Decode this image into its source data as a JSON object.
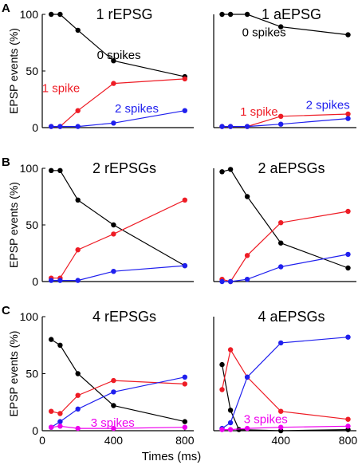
{
  "figure": {
    "ylabel": "EPSP events (%)",
    "xlabel": "Times (ms)"
  },
  "colors": {
    "0 spikes": "#000000",
    "1 spike": "#ee1c25",
    "2 spikes": "#1f1fee",
    "3 spikes": "#ee00ee",
    "axis": "#000000"
  },
  "chart_data": [
    {
      "type": "line",
      "panel": "A",
      "title": "1 rEPSG",
      "x": [
        50,
        100,
        200,
        400,
        800
      ],
      "xlim": [
        0,
        850
      ],
      "ylim": [
        0,
        100
      ],
      "xticks": [],
      "yticks": [
        0,
        50,
        100
      ],
      "xlabel": "",
      "ylabel": "EPSP events (%)",
      "series": [
        {
          "key": "0 spikes",
          "name": "0 spikes",
          "values": [
            100,
            100,
            86,
            59,
            45
          ]
        },
        {
          "key": "1 spike",
          "name": "1 spike",
          "values": [
            1,
            1,
            15,
            39,
            43
          ]
        },
        {
          "key": "2 spikes",
          "name": "2 spikes",
          "values": [
            1,
            1,
            1,
            4,
            15
          ]
        }
      ],
      "annotations": [
        {
          "key": "0 spikes",
          "text": "0 spikes",
          "x": 430,
          "y": 64
        },
        {
          "key": "1 spike",
          "text": "1 spike",
          "x": 105,
          "y": 35
        },
        {
          "key": "2 spikes",
          "text": "2 spikes",
          "x": 530,
          "y": 17
        }
      ]
    },
    {
      "type": "line",
      "panel": "",
      "title": "1 aEPSG",
      "x": [
        50,
        100,
        200,
        400,
        800
      ],
      "xlim": [
        0,
        850
      ],
      "ylim": [
        0,
        100
      ],
      "xticks": [],
      "yticks": [],
      "xlabel": "",
      "ylabel": "",
      "series": [
        {
          "key": "0 spikes",
          "name": "0 spikes",
          "values": [
            100,
            100,
            100,
            89,
            82
          ]
        },
        {
          "key": "1 spike",
          "name": "1 spike",
          "values": [
            1,
            1,
            1,
            10,
            12
          ]
        },
        {
          "key": "2 spikes",
          "name": "2 spikes",
          "values": [
            1,
            1,
            1,
            3,
            8
          ]
        }
      ],
      "annotations": [
        {
          "key": "0 spikes",
          "text": "0 spikes",
          "x": 300,
          "y": 84
        },
        {
          "key": "1 spike",
          "text": "1 spike",
          "x": 270,
          "y": 14
        },
        {
          "key": "2 spikes",
          "text": "2 spikes",
          "x": 680,
          "y": 20
        }
      ]
    },
    {
      "type": "line",
      "panel": "B",
      "title": "2 rEPSGs",
      "x": [
        50,
        100,
        200,
        400,
        800
      ],
      "xlim": [
        0,
        850
      ],
      "ylim": [
        0,
        100
      ],
      "xticks": [],
      "yticks": [
        0,
        50,
        100
      ],
      "xlabel": "",
      "ylabel": "EPSP events (%)",
      "series": [
        {
          "key": "0 spikes",
          "name": "0 spikes",
          "values": [
            98,
            98,
            72,
            50,
            14
          ]
        },
        {
          "key": "1 spike",
          "name": "1 spike",
          "values": [
            3,
            3,
            28,
            42,
            72
          ]
        },
        {
          "key": "2 spikes",
          "name": "2 spikes",
          "values": [
            1,
            1,
            1,
            9,
            14
          ]
        }
      ],
      "annotations": []
    },
    {
      "type": "line",
      "panel": "",
      "title": "2 aEPSGs",
      "x": [
        50,
        100,
        200,
        400,
        800
      ],
      "xlim": [
        0,
        850
      ],
      "ylim": [
        0,
        100
      ],
      "xticks": [],
      "yticks": [],
      "xlabel": "",
      "ylabel": "",
      "series": [
        {
          "key": "0 spikes",
          "name": "0 spikes",
          "values": [
            97,
            99,
            75,
            34,
            12
          ]
        },
        {
          "key": "1 spike",
          "name": "1 spike",
          "values": [
            2,
            0,
            23,
            52,
            62
          ]
        },
        {
          "key": "2 spikes",
          "name": "2 spikes",
          "values": [
            0,
            0,
            2,
            13,
            24
          ]
        }
      ],
      "annotations": []
    },
    {
      "type": "line",
      "panel": "C",
      "title": "4 rEPSGs",
      "x": [
        50,
        100,
        200,
        400,
        800
      ],
      "xlim": [
        0,
        850
      ],
      "ylim": [
        0,
        100
      ],
      "xticks": [
        0,
        400,
        800
      ],
      "yticks": [
        0,
        50,
        100
      ],
      "xlabel": "Times (ms)",
      "ylabel": "EPSP events (%)",
      "series": [
        {
          "key": "0 spikes",
          "name": "0 spikes",
          "values": [
            80,
            75,
            50,
            22,
            8
          ]
        },
        {
          "key": "1 spike",
          "name": "1 spike",
          "values": [
            17,
            15,
            31,
            44,
            41
          ]
        },
        {
          "key": "2 spikes",
          "name": "2 spikes",
          "values": [
            3,
            8,
            19,
            34,
            47
          ]
        },
        {
          "key": "3 spikes",
          "name": "3 spikes",
          "values": [
            3,
            4,
            2,
            2,
            3
          ]
        }
      ],
      "annotations": [
        {
          "key": "3 spikes",
          "text": "3 spikes",
          "x": 395,
          "y": 7
        }
      ]
    },
    {
      "type": "line",
      "panel": "",
      "title": "4 aEPSGs",
      "x": [
        50,
        100,
        150,
        200,
        400,
        800
      ],
      "xlim": [
        0,
        850
      ],
      "ylim": [
        0,
        100
      ],
      "xticks": [
        400,
        800
      ],
      "yticks": [],
      "xlabel": "",
      "ylabel": "",
      "series": [
        {
          "key": "0 spikes",
          "name": "0 spikes",
          "values": [
            58,
            18,
            1,
            null,
            0,
            1
          ]
        },
        {
          "key": "1 spike",
          "name": "1 spike",
          "values": [
            36,
            71,
            null,
            47,
            17,
            10
          ]
        },
        {
          "key": "2 spikes",
          "name": "2 spikes",
          "values": [
            2,
            7,
            null,
            47,
            77,
            82
          ]
        },
        {
          "key": "3 spikes",
          "name": "3 spikes",
          "values": [
            1,
            1,
            null,
            2,
            3,
            4
          ]
        }
      ],
      "annotations": [
        {
          "key": "3 spikes",
          "text": "3 spikes",
          "x": 310,
          "y": 10
        }
      ]
    }
  ]
}
